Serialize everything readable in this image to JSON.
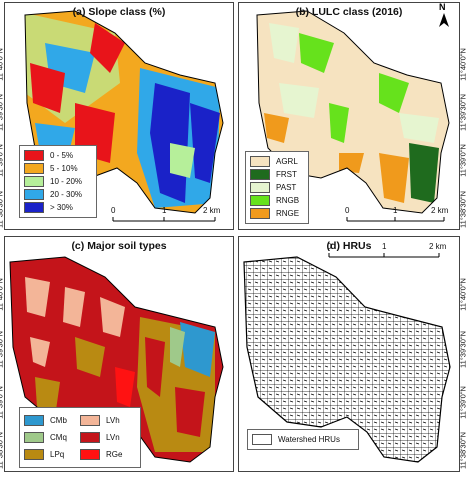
{
  "panels": {
    "a": {
      "title": "(a) Slope class (%)",
      "legend": [
        {
          "label": "0 - 5%",
          "color": "#e8141a"
        },
        {
          "label": "5 - 10%",
          "color": "#f3a81f"
        },
        {
          "label": "10 - 20%",
          "color": "#b6ef9a"
        },
        {
          "label": "20 - 30%",
          "color": "#30a8e8"
        },
        {
          "label": "> 30%",
          "color": "#1a22c8"
        }
      ]
    },
    "b": {
      "title": "(b) LULC class (2016)",
      "legend": [
        {
          "label": "AGRL",
          "color": "#f6e3c0"
        },
        {
          "label": "FRST",
          "color": "#1f6b1e"
        },
        {
          "label": "PAST",
          "color": "#e6f5d0"
        },
        {
          "label": "RNGB",
          "color": "#66e21c"
        },
        {
          "label": "RNGE",
          "color": "#f09a1c"
        }
      ]
    },
    "c": {
      "title": "(c) Major soil types",
      "legend": [
        {
          "label": "CMb",
          "color": "#2e98cf"
        },
        {
          "label": "LVh",
          "color": "#f3b598"
        },
        {
          "label": "CMq",
          "color": "#9fc98a"
        },
        {
          "label": "LVn",
          "color": "#c4141a"
        },
        {
          "label": "LPq",
          "color": "#b98a12"
        },
        {
          "label": "RGe",
          "color": "#ff1212"
        }
      ]
    },
    "d": {
      "title": "(d) HRUs",
      "legend": [
        {
          "label": "Watershed HRUs",
          "color": "#ffffff"
        }
      ]
    }
  },
  "scale_bar": {
    "ticks": [
      "0",
      "1",
      "2 km"
    ]
  },
  "latitudes": [
    "11°40'0\"N",
    "11°39'30\"N",
    "11°39'0\"N",
    "11°38'30\"N"
  ],
  "north_label": "N",
  "colors": {
    "hru_line": "#000000",
    "outline": "#000000"
  }
}
